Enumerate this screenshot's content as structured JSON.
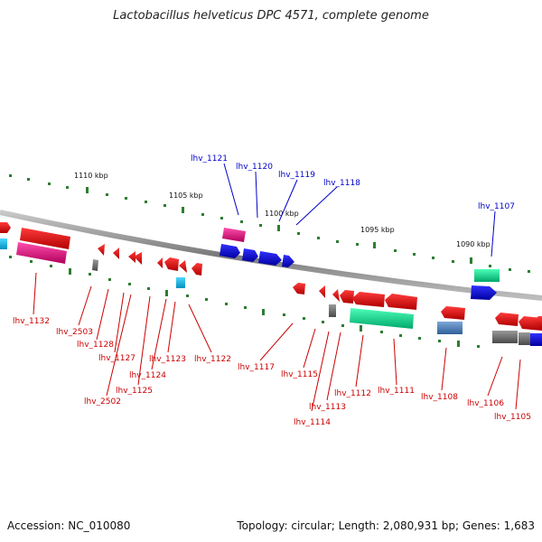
{
  "title": "Lactobacillus helveticus DPC 4571, complete genome",
  "footer": {
    "accession": "Accession: NC_010080",
    "summary": "Topology: circular; Length: 2,080,931 bp; Genes: 1,683"
  },
  "colors": {
    "background": "#ffffff",
    "backbone": "#8c8c8c",
    "tick": "#2e7d32",
    "label_forward": "#0000cc",
    "label_reverse": "#cc0000"
  },
  "scale_labels": [
    "1110 kbp",
    "1105 kbp",
    "1100 kbp",
    "1095 kbp",
    "1090 kbp"
  ],
  "gene_labels": {
    "forward": [
      "lhv_1121",
      "lhv_1120",
      "lhv_1119",
      "lhv_1118",
      "lhv_1107"
    ],
    "reverse": [
      "lhv_1132",
      "lhv_2503",
      "lhv_1128",
      "lhv_1127",
      "lhv_2502",
      "lhv_1125",
      "lhv_1124",
      "lhv_1123",
      "lhv_1122",
      "lhv_1117",
      "lhv_1115",
      "lhv_1114",
      "lhv_1113",
      "lhv_1112",
      "lhv_1111",
      "lhv_1108",
      "lhv_1106",
      "lhv_1105"
    ]
  }
}
